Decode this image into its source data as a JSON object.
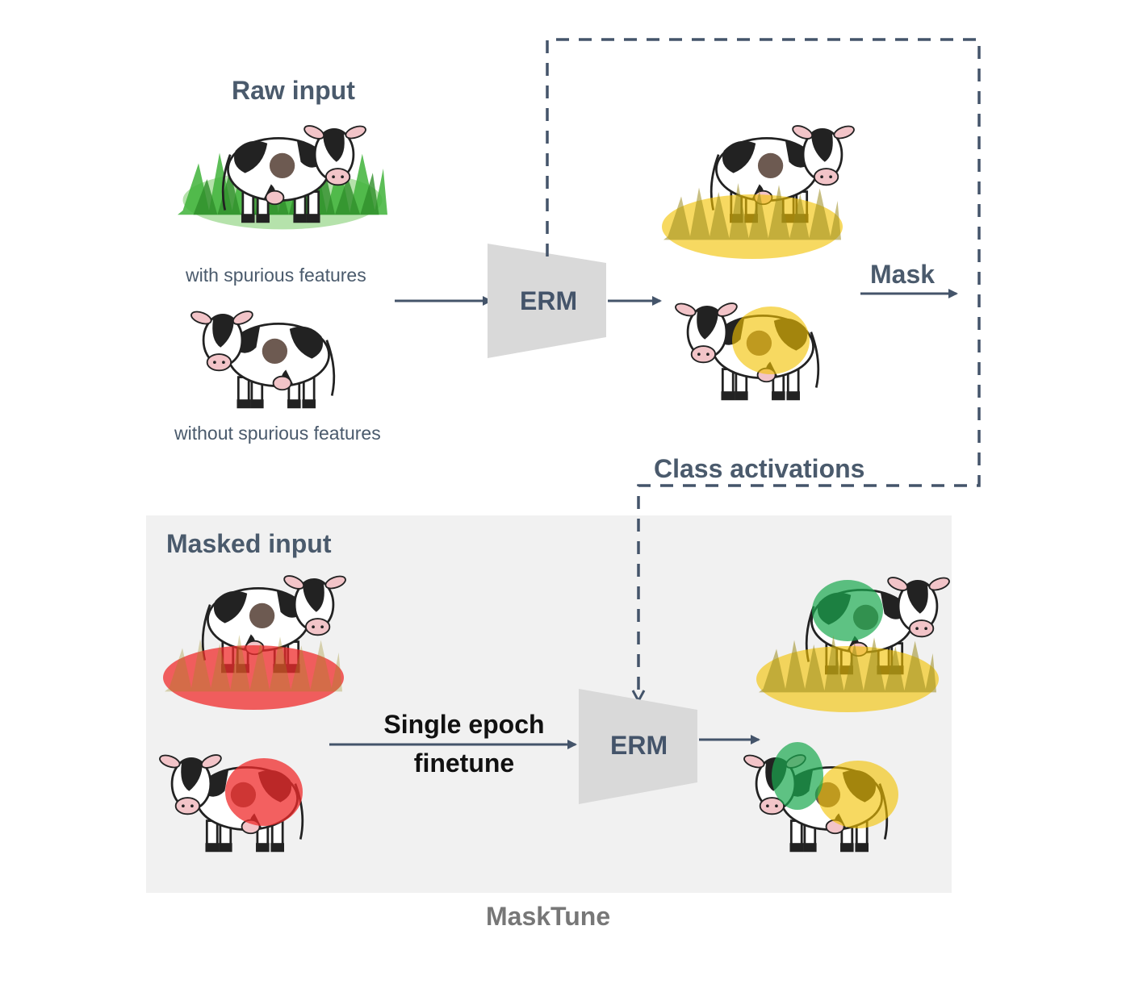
{
  "raw_input": {
    "title": "Raw input",
    "with_caption": "with spurious features",
    "without_caption": "without spurious features"
  },
  "erm_top": {
    "label": "ERM"
  },
  "erm_bottom": {
    "label": "ERM"
  },
  "mask_label": "Mask",
  "class_activations_label": "Class activations",
  "masked_input": {
    "title": "Masked input"
  },
  "finetune_label": [
    "Single epoch",
    "finetune"
  ],
  "method_name": "MaskTune",
  "colors": {
    "text_dark": "#4a5a6c",
    "arrow": "#44546a",
    "erm_block": "#d9d9d9",
    "panel_bg": "#f1f1f1",
    "activation_yellow": "#f2c200",
    "mask_red": "#ef2b2b",
    "activation_green": "#1aa84e",
    "grass_green": "#3fb33a",
    "caption_gray": "#777777"
  },
  "icons": [
    "cow-icon",
    "grass-icon",
    "yellow-activation-blob",
    "red-mask-blob",
    "green-activation-blob"
  ]
}
